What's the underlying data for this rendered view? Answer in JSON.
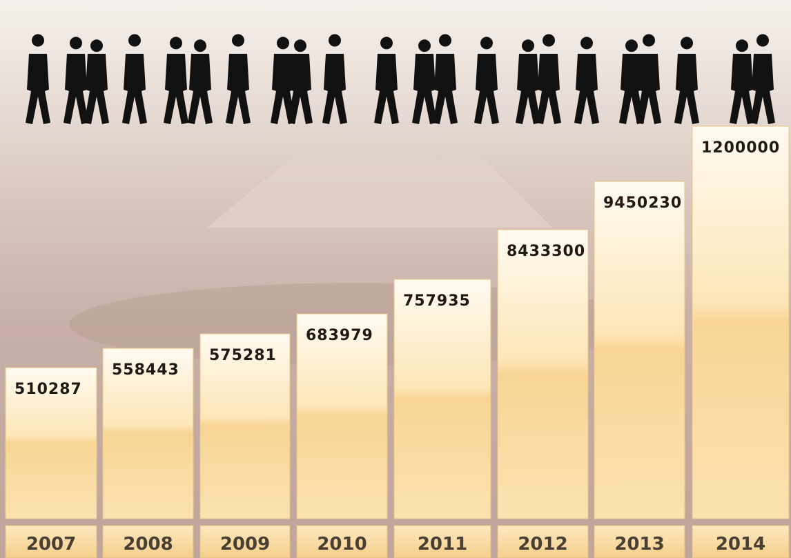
{
  "columns": [
    {
      "year": "2007",
      "figure": "510287"
    },
    {
      "year": "2008",
      "figure": "558443"
    },
    {
      "year": "2009",
      "figure": "575281"
    },
    {
      "year": "2010",
      "figure": "683979"
    },
    {
      "year": "2011",
      "figure": "757935"
    },
    {
      "year": "2012",
      "figure": "8433300"
    },
    {
      "year": "2013",
      "figure": "9450230"
    },
    {
      "year": "2014",
      "figure": "1200000"
    }
  ]
}
